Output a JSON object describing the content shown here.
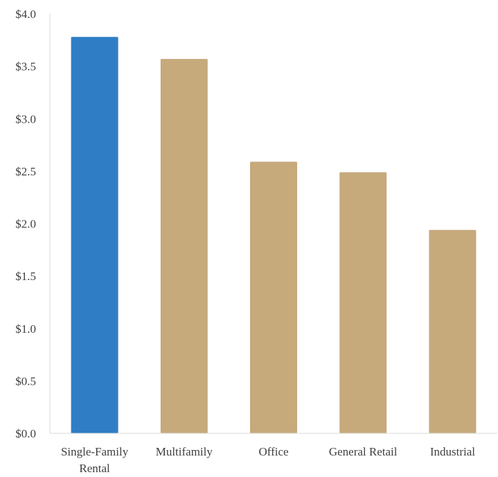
{
  "chart_data": {
    "type": "bar",
    "title": "",
    "xlabel": "",
    "ylabel": "",
    "categories": [
      [
        "Single-Family",
        "Rental"
      ],
      [
        "Multifamily"
      ],
      [
        "Office"
      ],
      [
        "General Retail"
      ],
      [
        "Industrial"
      ]
    ],
    "values": [
      3.78,
      3.57,
      2.59,
      2.49,
      1.94
    ],
    "ylim": [
      0,
      4.0
    ],
    "ytick_labels": [
      "$0.0",
      "$0.5",
      "$1.0",
      "$1.5",
      "$2.0",
      "$2.5",
      "$3.0",
      "$3.5",
      "$4.0"
    ],
    "colors": [
      "#2f7dc5",
      "#c6aa7c",
      "#c6aa7c",
      "#c6aa7c",
      "#c6aa7c"
    ],
    "grid": false,
    "legend": "none"
  }
}
